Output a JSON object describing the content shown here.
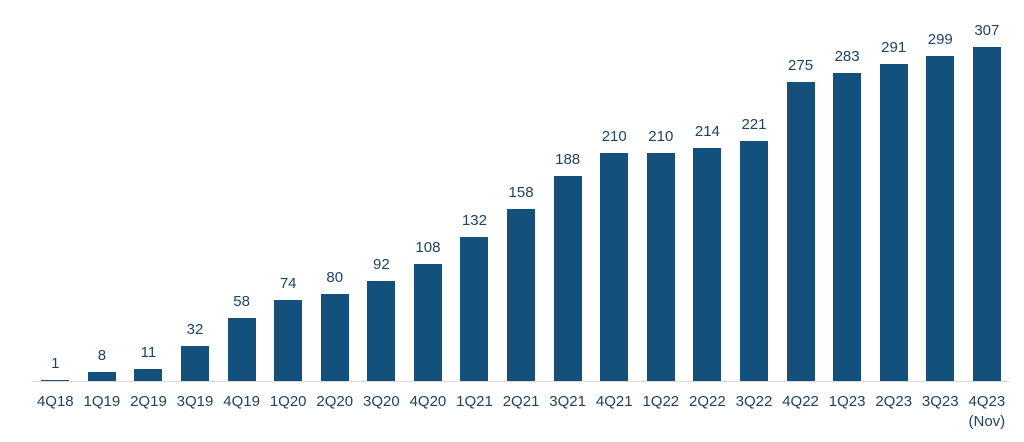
{
  "chart_data": {
    "type": "bar",
    "title": "",
    "xlabel": "",
    "ylabel": "",
    "categories": [
      "4Q18",
      "1Q19",
      "2Q19",
      "3Q19",
      "4Q19",
      "1Q20",
      "2Q20",
      "3Q20",
      "4Q20",
      "1Q21",
      "2Q21",
      "3Q21",
      "4Q21",
      "1Q22",
      "2Q22",
      "3Q22",
      "4Q22",
      "1Q23",
      "2Q23",
      "3Q23",
      "4Q23\n(Nov)"
    ],
    "values": [
      1,
      8,
      11,
      32,
      58,
      74,
      80,
      92,
      108,
      132,
      158,
      188,
      210,
      210,
      214,
      221,
      275,
      283,
      291,
      299,
      307
    ],
    "data_labels_visible": true,
    "y_axis_visible": false,
    "gridlines": false,
    "legend_position": "none",
    "ylim": [
      0,
      307
    ],
    "colors": {
      "bar_fill": "#14507C",
      "label_text": "#1F4265",
      "axis_line": "#D9D9D9",
      "background": "#FFFFFF"
    }
  }
}
